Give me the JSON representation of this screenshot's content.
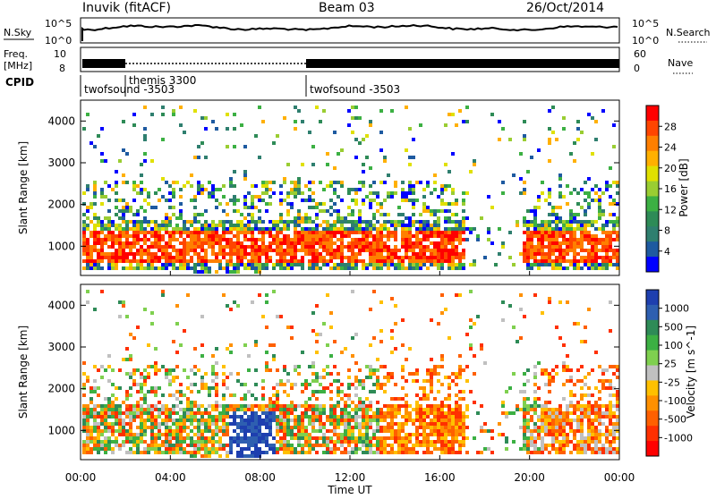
{
  "header": {
    "station": "Inuvik (fitACF)",
    "beam": "Beam 03",
    "date": "26/Oct/2014"
  },
  "top_panel": {
    "left_label": "N.Sky",
    "right_label": "N.Search",
    "left_ticks": [
      "10^5",
      "10^0"
    ],
    "right_ticks": [
      "10^5",
      "10^0"
    ]
  },
  "freq_panel": {
    "label_line1": "Freq.",
    "label_line2": "[MHz]",
    "left_ticks": [
      "10",
      "8"
    ],
    "right_label": "Nave",
    "right_ticks": [
      "60",
      "0"
    ]
  },
  "cpid": {
    "label": "CPID",
    "segments": [
      {
        "name": "twofsound -3503",
        "start_hour": 0
      },
      {
        "name": "themis 3300",
        "start_hour": 2
      },
      {
        "name": "twofsound -3503",
        "start_hour": 10
      }
    ]
  },
  "chart_data": [
    {
      "type": "heatmap",
      "name": "power",
      "ylabel": "Slant Range [km]",
      "yticks": [
        1000,
        2000,
        3000,
        4000
      ],
      "ylim": [
        300,
        4500
      ],
      "colorbar_label": "Power [dB]",
      "colorbar_ticks": [
        "28",
        "24",
        "20",
        "16",
        "12",
        "8",
        "4"
      ],
      "colorbar_colors": [
        "#ff0000",
        "#ff4500",
        "#ff7f00",
        "#ffb000",
        "#e0e000",
        "#9acd32",
        "#3cb043",
        "#2e8b57",
        "#2f7f6f",
        "#1e5aa0",
        "#0000ff"
      ],
      "description_main_band_km": [
        600,
        1700
      ]
    },
    {
      "type": "heatmap",
      "name": "velocity",
      "ylabel": "Slant Range [km]",
      "yticks": [
        1000,
        2000,
        3000,
        4000
      ],
      "ylim": [
        300,
        4500
      ],
      "colorbar_label": "Velocity [m s^-1]",
      "colorbar_ticks": [
        "1000",
        "500",
        "100",
        "25",
        "-25",
        "-100",
        "-500",
        "-1000"
      ],
      "colorbar_colors": [
        "#1e3faf",
        "#2e5fb0",
        "#2e8b57",
        "#3cb043",
        "#7fd04f",
        "#c0c0c0",
        "#ffc000",
        "#ff9000",
        "#ff6000",
        "#ff3000",
        "#ff0000"
      ]
    }
  ],
  "xaxis": {
    "label": "Time UT",
    "ticks": [
      "00:00",
      "04:00",
      "08:00",
      "12:00",
      "16:00",
      "20:00",
      "00:00"
    ]
  }
}
